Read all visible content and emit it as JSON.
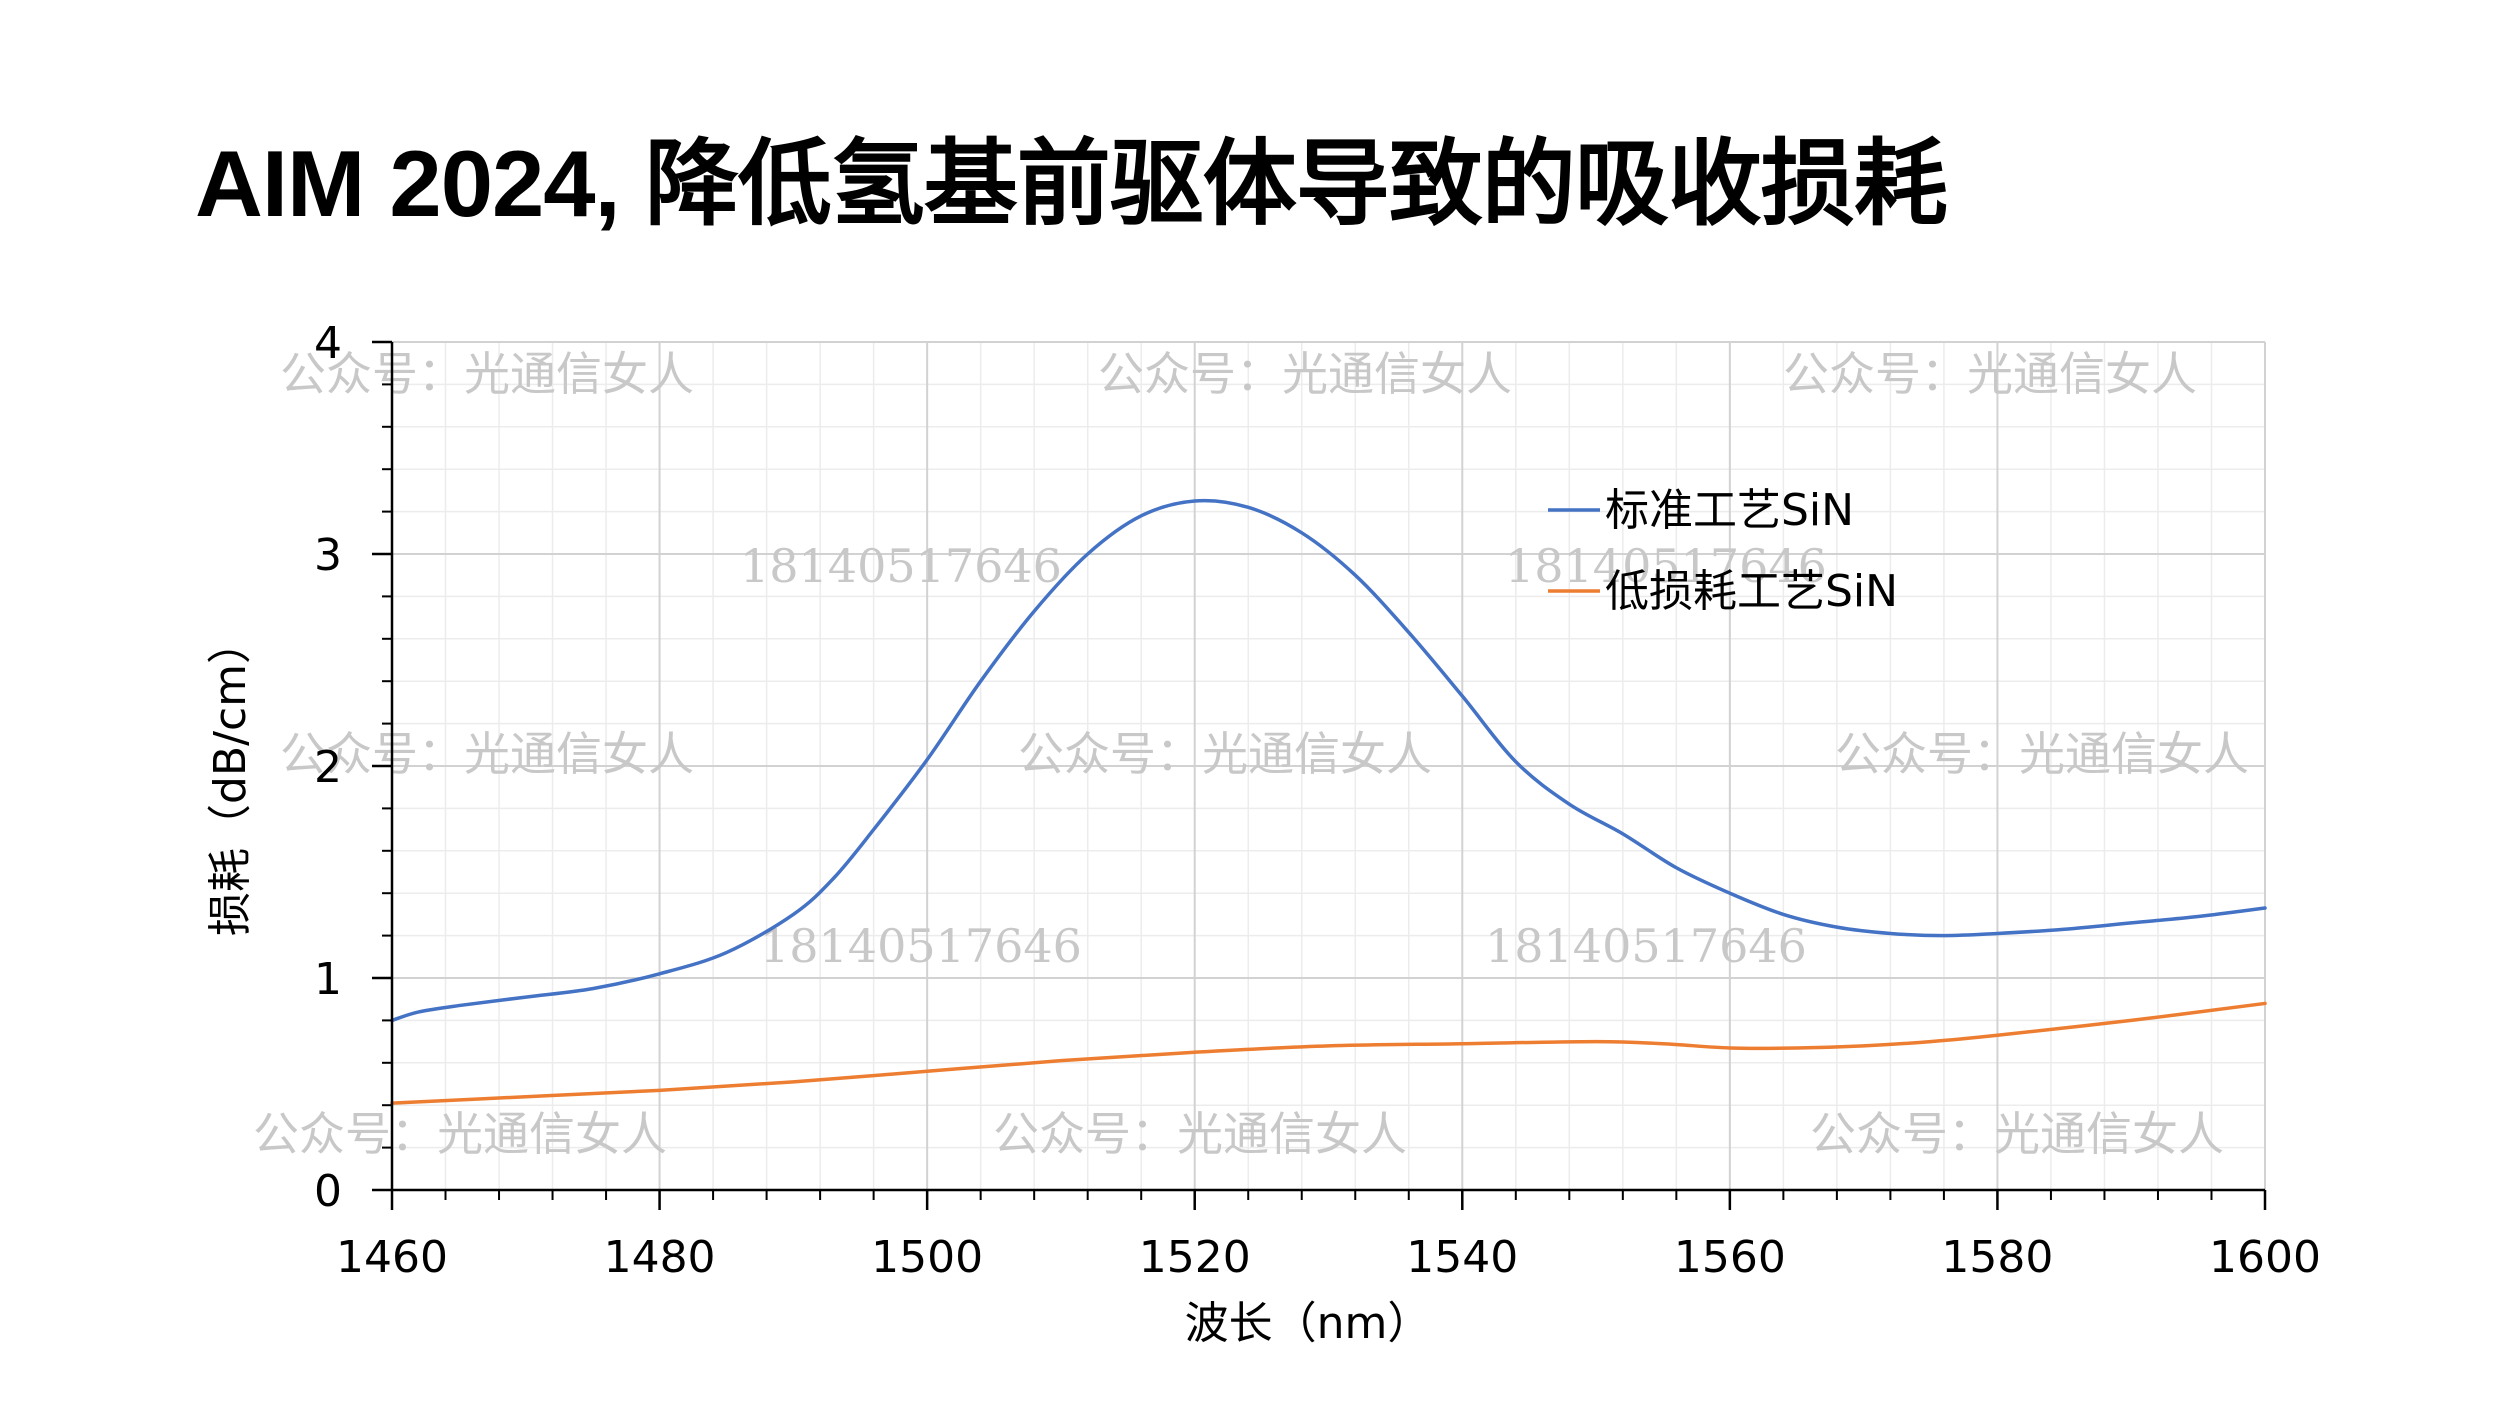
{
  "title": "AIM 2024, 降低氢基前驱体导致的吸收损耗",
  "chart_data": {
    "type": "line",
    "xlabel": "波长（nm）",
    "ylabel": "损耗（dB/cm）",
    "xlim": [
      1460,
      1600
    ],
    "ylim": [
      0,
      4
    ],
    "x_ticks": [
      1460,
      1480,
      1500,
      1520,
      1540,
      1560,
      1580,
      1600
    ],
    "y_ticks": [
      0,
      1,
      2,
      3,
      4
    ],
    "grid": true,
    "legend_position": "top-right",
    "series": [
      {
        "name": "标准工艺SiN",
        "color": "#4472C4",
        "points": [
          [
            1460,
            0.8
          ],
          [
            1462,
            0.84
          ],
          [
            1465,
            0.87
          ],
          [
            1470,
            0.91
          ],
          [
            1475,
            0.95
          ],
          [
            1480,
            1.02
          ],
          [
            1485,
            1.12
          ],
          [
            1490,
            1.3
          ],
          [
            1493,
            1.47
          ],
          [
            1496,
            1.7
          ],
          [
            1500,
            2.03
          ],
          [
            1504,
            2.4
          ],
          [
            1508,
            2.73
          ],
          [
            1512,
            3.0
          ],
          [
            1516,
            3.18
          ],
          [
            1520,
            3.25
          ],
          [
            1524,
            3.22
          ],
          [
            1528,
            3.1
          ],
          [
            1532,
            2.9
          ],
          [
            1536,
            2.63
          ],
          [
            1540,
            2.33
          ],
          [
            1544,
            2.02
          ],
          [
            1548,
            1.82
          ],
          [
            1552,
            1.68
          ],
          [
            1556,
            1.52
          ],
          [
            1560,
            1.4
          ],
          [
            1564,
            1.3
          ],
          [
            1568,
            1.24
          ],
          [
            1572,
            1.21
          ],
          [
            1576,
            1.2
          ],
          [
            1580,
            1.21
          ],
          [
            1585,
            1.23
          ],
          [
            1590,
            1.26
          ],
          [
            1595,
            1.29
          ],
          [
            1600,
            1.33
          ]
        ]
      },
      {
        "name": "低损耗工艺SiN",
        "color": "#ED7D31",
        "points": [
          [
            1460,
            0.41
          ],
          [
            1470,
            0.44
          ],
          [
            1480,
            0.47
          ],
          [
            1490,
            0.51
          ],
          [
            1500,
            0.56
          ],
          [
            1510,
            0.61
          ],
          [
            1520,
            0.65
          ],
          [
            1530,
            0.68
          ],
          [
            1540,
            0.69
          ],
          [
            1550,
            0.7
          ],
          [
            1555,
            0.69
          ],
          [
            1560,
            0.67
          ],
          [
            1565,
            0.67
          ],
          [
            1570,
            0.68
          ],
          [
            1575,
            0.7
          ],
          [
            1580,
            0.73
          ],
          [
            1590,
            0.8
          ],
          [
            1600,
            0.88
          ]
        ]
      }
    ]
  },
  "watermarks": {
    "wechat": "公众号：光通信女人",
    "phone": "18140517646"
  }
}
